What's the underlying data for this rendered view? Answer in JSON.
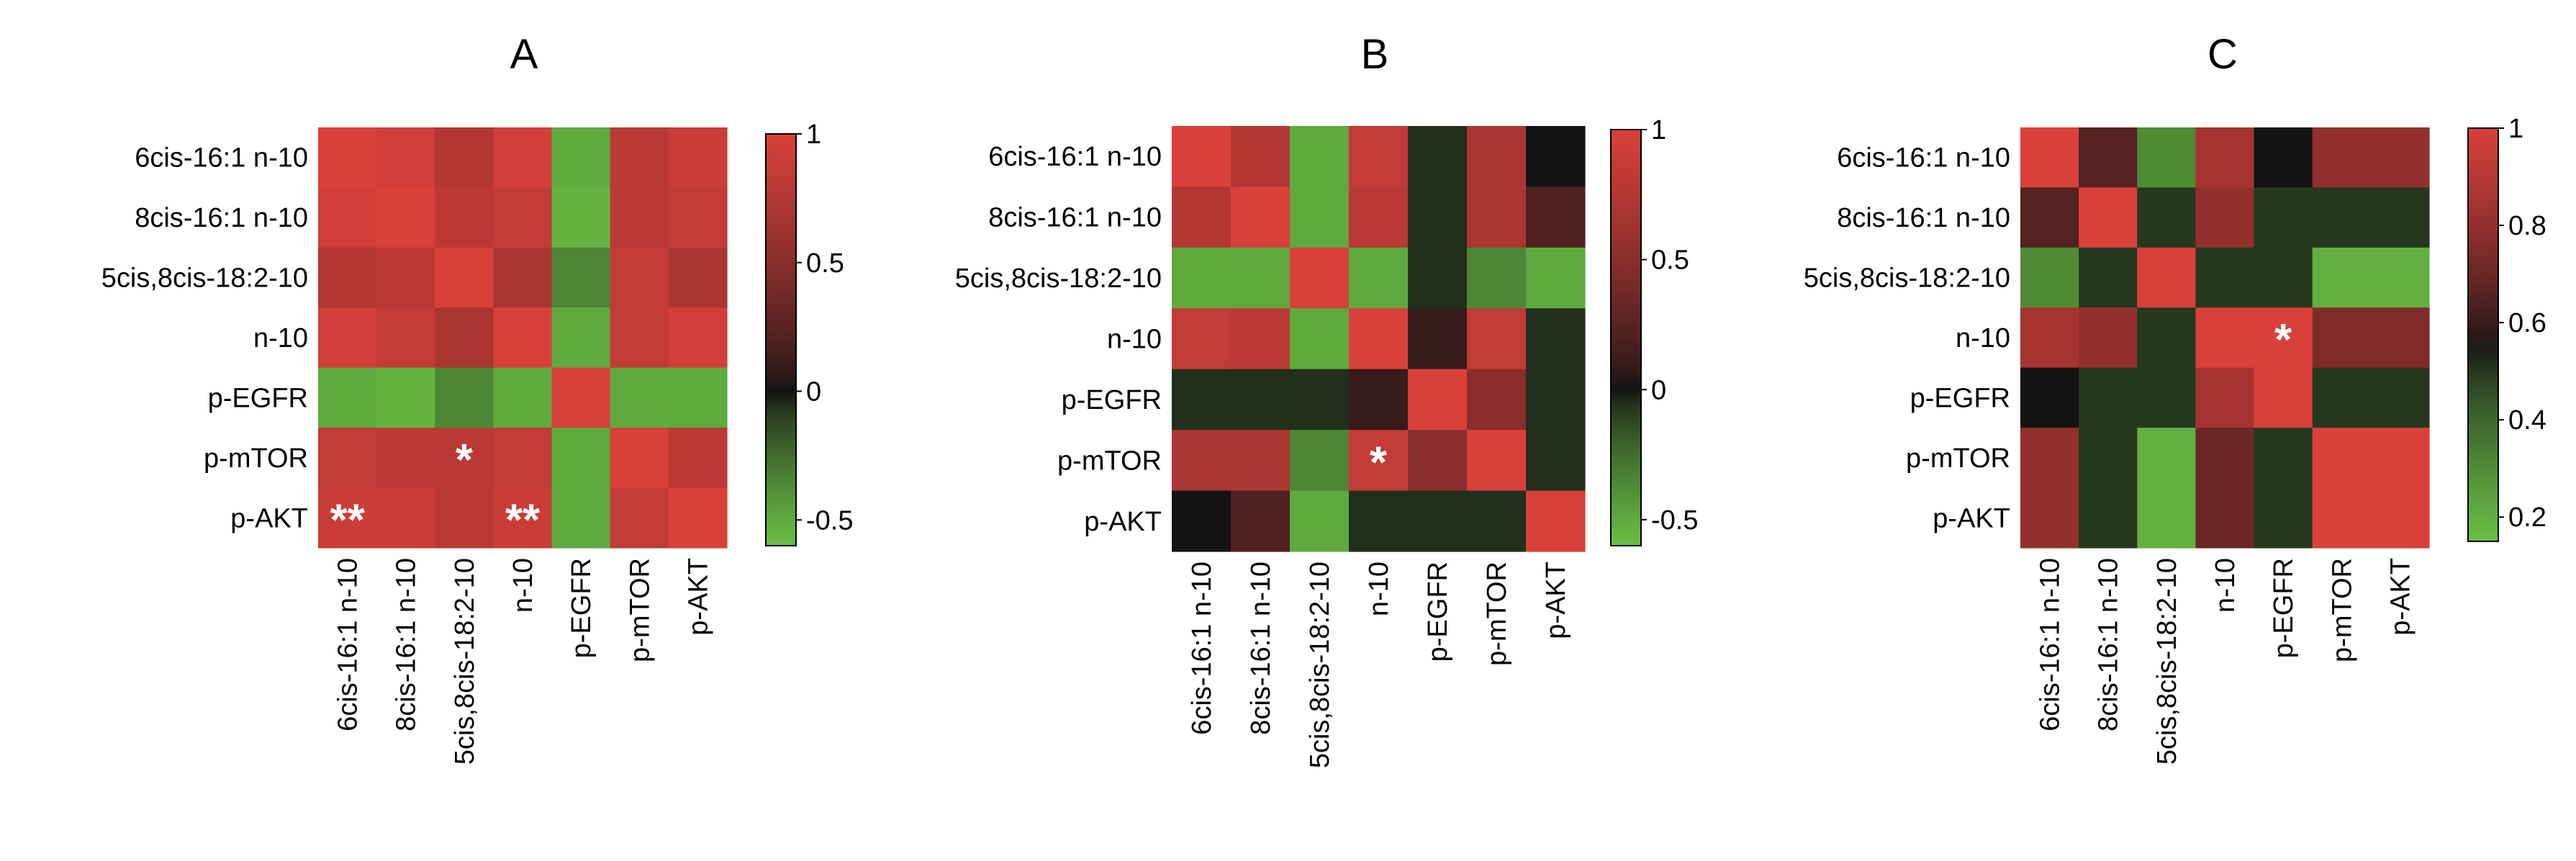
{
  "chart_data": [
    {
      "type": "heatmap",
      "title": "A",
      "rows": [
        "6cis-16:1 n-10",
        "8cis-16:1 n-10",
        "5cis,8cis-18:2-10",
        "n-10",
        "p-EGFR",
        "p-mTOR",
        "p-AKT"
      ],
      "cols": [
        "6cis-16:1 n-10",
        "8cis-16:1 n-10",
        "5cis,8cis-18:2-10",
        "n-10",
        "p-EGFR",
        "p-mTOR",
        "p-AKT"
      ],
      "values": [
        [
          1.0,
          0.95,
          0.75,
          0.95,
          -0.5,
          0.8,
          0.9
        ],
        [
          0.95,
          1.0,
          0.8,
          0.85,
          -0.55,
          0.8,
          0.85
        ],
        [
          0.75,
          0.8,
          1.0,
          0.7,
          -0.35,
          0.85,
          0.7
        ],
        [
          0.95,
          0.85,
          0.7,
          1.0,
          -0.5,
          0.85,
          0.95
        ],
        [
          -0.5,
          -0.55,
          -0.35,
          -0.5,
          1.0,
          -0.5,
          -0.5
        ],
        [
          0.85,
          0.8,
          0.8,
          0.85,
          -0.5,
          1.0,
          0.8
        ],
        [
          0.9,
          0.9,
          0.8,
          0.9,
          -0.5,
          0.85,
          1.0
        ]
      ],
      "annotations": [
        {
          "row": 5,
          "col": 2,
          "text": "*"
        },
        {
          "row": 6,
          "col": 0,
          "text": "**"
        },
        {
          "row": 6,
          "col": 3,
          "text": "**"
        }
      ],
      "colorbar": {
        "range": [
          -0.6,
          1.0
        ],
        "ticks": [
          "1",
          "0.5",
          "0",
          "-0.5"
        ],
        "tick_values": [
          1,
          0.5,
          0,
          -0.5
        ],
        "diverging": true,
        "center": 0
      }
    },
    {
      "type": "heatmap",
      "title": "B",
      "rows": [
        "6cis-16:1 n-10",
        "8cis-16:1 n-10",
        "5cis,8cis-18:2-10",
        "n-10",
        "p-EGFR",
        "p-mTOR",
        "p-AKT"
      ],
      "cols": [
        "6cis-16:1 n-10",
        "8cis-16:1 n-10",
        "5cis,8cis-18:2-10",
        "n-10",
        "p-EGFR",
        "p-mTOR",
        "p-AKT"
      ],
      "values": [
        [
          1.0,
          0.75,
          -0.5,
          0.85,
          -0.05,
          0.7,
          0.0
        ],
        [
          0.75,
          1.0,
          -0.5,
          0.8,
          -0.05,
          0.7,
          0.2
        ],
        [
          -0.5,
          -0.5,
          1.0,
          -0.5,
          -0.05,
          -0.35,
          -0.5
        ],
        [
          0.85,
          0.8,
          -0.5,
          1.0,
          0.1,
          0.85,
          -0.05
        ],
        [
          -0.05,
          -0.05,
          -0.05,
          0.1,
          1.0,
          0.5,
          -0.05
        ],
        [
          0.7,
          0.7,
          -0.35,
          0.85,
          0.5,
          1.0,
          -0.05
        ],
        [
          0.0,
          0.2,
          -0.5,
          -0.05,
          -0.05,
          -0.05,
          1.0
        ]
      ],
      "annotations": [
        {
          "row": 5,
          "col": 3,
          "text": "*"
        }
      ],
      "colorbar": {
        "range": [
          -0.6,
          1.0
        ],
        "ticks": [
          "1",
          "0.5",
          "0",
          "-0.5"
        ],
        "tick_values": [
          1,
          0.5,
          0,
          -0.5
        ],
        "diverging": true,
        "center": 0
      }
    },
    {
      "type": "heatmap",
      "title": "C",
      "rows": [
        "6cis-16:1 n-10",
        "8cis-16:1 n-10",
        "5cis,8cis-18:2-10",
        "n-10",
        "p-EGFR",
        "p-mTOR",
        "p-AKT"
      ],
      "cols": [
        "6cis-16:1 n-10",
        "8cis-16:1 n-10",
        "5cis,8cis-18:2-10",
        "n-10",
        "p-EGFR",
        "p-mTOR",
        "p-AKT"
      ],
      "values": [
        [
          1.0,
          0.65,
          0.3,
          0.85,
          0.55,
          0.8,
          0.8
        ],
        [
          0.65,
          1.0,
          0.5,
          0.8,
          0.5,
          0.5,
          0.5
        ],
        [
          0.3,
          0.5,
          1.0,
          0.5,
          0.5,
          0.2,
          0.2
        ],
        [
          0.85,
          0.8,
          0.5,
          1.0,
          1.0,
          0.75,
          0.75
        ],
        [
          0.55,
          0.5,
          0.5,
          0.85,
          1.0,
          0.5,
          0.5
        ],
        [
          0.8,
          0.5,
          0.2,
          0.7,
          0.5,
          1.0,
          1.0
        ],
        [
          0.8,
          0.5,
          0.2,
          0.7,
          0.5,
          1.0,
          1.0
        ]
      ],
      "annotations": [
        {
          "row": 3,
          "col": 4,
          "text": "*"
        }
      ],
      "colorbar": {
        "range": [
          0.15,
          1.0
        ],
        "ticks": [
          "1",
          "0.8",
          "0.6",
          "0.4",
          "0.2"
        ],
        "tick_values": [
          1,
          0.8,
          0.6,
          0.4,
          0.2
        ],
        "diverging": true,
        "center": 0.55
      }
    }
  ],
  "colors": {
    "high": "#d9403a",
    "mid": "#141414",
    "low": "#6abf45"
  }
}
